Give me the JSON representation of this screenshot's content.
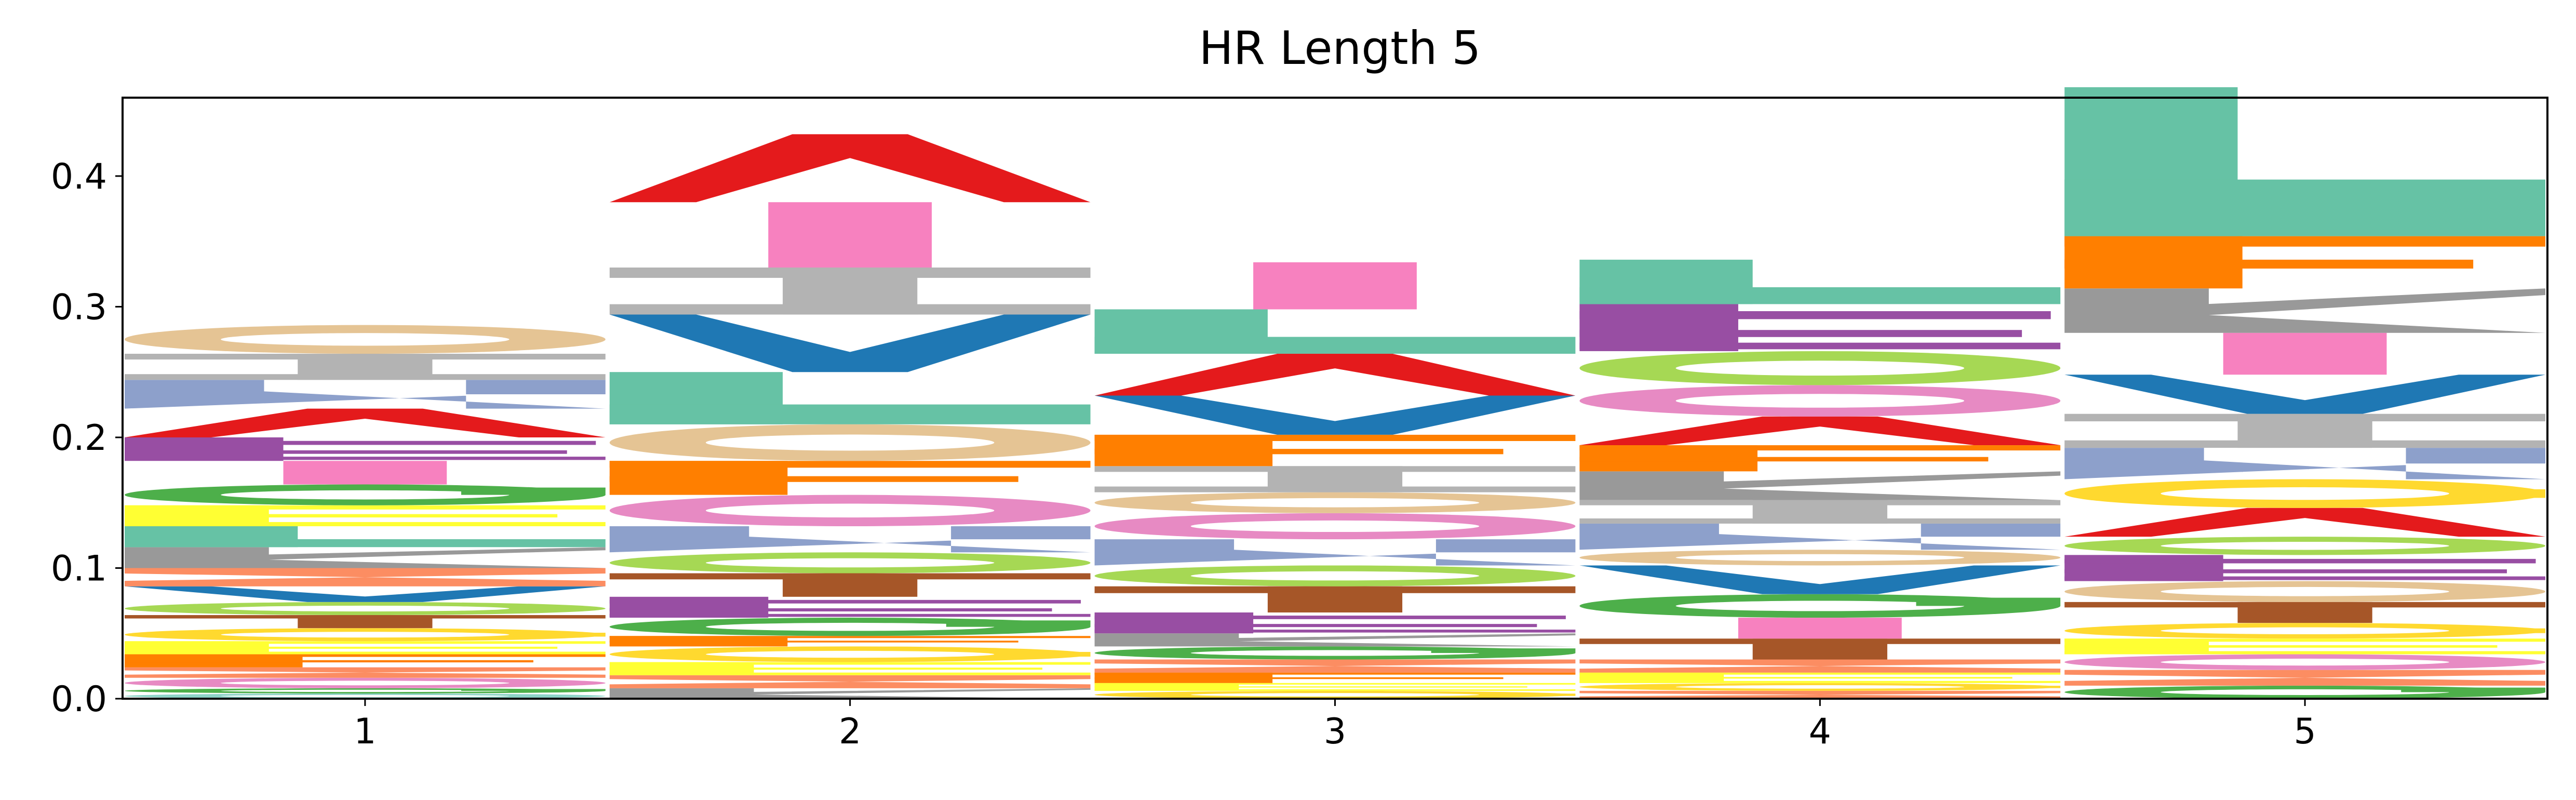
{
  "chart_data": {
    "type": "sequence-logo",
    "title": "HR Length 5",
    "xlabel": "",
    "ylabel": "",
    "ylim": [
      0,
      0.46
    ],
    "yticks": [
      0.0,
      0.1,
      0.2,
      0.3,
      0.4
    ],
    "ytick_labels": [
      "0.0",
      "0.1",
      "0.2",
      "0.3",
      "0.4"
    ],
    "x": [
      1,
      2,
      3,
      4,
      5
    ],
    "xtick_labels": [
      "1",
      "2",
      "3",
      "4",
      "5"
    ],
    "grid": false,
    "legend": "none",
    "colors": {
      "A": "#e41a1c",
      "V": "#1f78b4",
      "L": "#66c2a5",
      "I": "#b3b3b3",
      "M": "#f781bf",
      "F": "#ff7f00",
      "Y": "#ffd92f",
      "W": "#8da0cb",
      "K": "#984ea3",
      "R": "#a6d854",
      "H": "#e5c494",
      "D": "#4daf4a",
      "E": "#ffff33",
      "S": "#fc8d62",
      "T": "#a65628",
      "N": "#999999",
      "Q": "#e78ac3",
      "G": "#8dd3c7",
      "P": "#bebada",
      "C": "#fdb462"
    },
    "positions": [
      {
        "position": 1,
        "stack": [
          {
            "glyph": "G",
            "height": 0.004
          },
          {
            "glyph": "D",
            "height": 0.004
          },
          {
            "glyph": "Q",
            "height": 0.008
          },
          {
            "glyph": "S",
            "height": 0.008
          },
          {
            "glyph": "F",
            "height": 0.01
          },
          {
            "glyph": "E",
            "height": 0.01
          },
          {
            "glyph": "Y",
            "height": 0.01
          },
          {
            "glyph": "T",
            "height": 0.01
          },
          {
            "glyph": "R",
            "height": 0.01
          },
          {
            "glyph": "V",
            "height": 0.012
          },
          {
            "glyph": "S",
            "height": 0.014
          },
          {
            "glyph": "N",
            "height": 0.016
          },
          {
            "glyph": "L",
            "height": 0.016
          },
          {
            "glyph": "E",
            "height": 0.016
          },
          {
            "glyph": "D",
            "height": 0.016
          },
          {
            "glyph": "M",
            "height": 0.018
          },
          {
            "glyph": "K",
            "height": 0.018
          },
          {
            "glyph": "A",
            "height": 0.022
          },
          {
            "glyph": "W",
            "height": 0.022
          },
          {
            "glyph": "I",
            "height": 0.02
          },
          {
            "glyph": "H",
            "height": 0.022
          }
        ]
      },
      {
        "position": 2,
        "stack": [
          {
            "glyph": "N",
            "height": 0.008
          },
          {
            "glyph": "S",
            "height": 0.01
          },
          {
            "glyph": "E",
            "height": 0.01
          },
          {
            "glyph": "Y",
            "height": 0.012
          },
          {
            "glyph": "F",
            "height": 0.008
          },
          {
            "glyph": "D",
            "height": 0.014
          },
          {
            "glyph": "K",
            "height": 0.016
          },
          {
            "glyph": "T",
            "height": 0.018
          },
          {
            "glyph": "R",
            "height": 0.016
          },
          {
            "glyph": "W",
            "height": 0.02
          },
          {
            "glyph": "Q",
            "height": 0.024
          },
          {
            "glyph": "F",
            "height": 0.026
          },
          {
            "glyph": "H",
            "height": 0.028
          },
          {
            "glyph": "L",
            "height": 0.04
          },
          {
            "glyph": "V",
            "height": 0.044
          },
          {
            "glyph": "I",
            "height": 0.036
          },
          {
            "glyph": "M",
            "height": 0.05
          },
          {
            "glyph": "A",
            "height": 0.052
          }
        ]
      },
      {
        "position": 3,
        "stack": [
          {
            "glyph": "Y",
            "height": 0.006
          },
          {
            "glyph": "E",
            "height": 0.006
          },
          {
            "glyph": "F",
            "height": 0.008
          },
          {
            "glyph": "S",
            "height": 0.01
          },
          {
            "glyph": "D",
            "height": 0.01
          },
          {
            "glyph": "N",
            "height": 0.01
          },
          {
            "glyph": "K",
            "height": 0.016
          },
          {
            "glyph": "T",
            "height": 0.02
          },
          {
            "glyph": "R",
            "height": 0.016
          },
          {
            "glyph": "W",
            "height": 0.02
          },
          {
            "glyph": "Q",
            "height": 0.02
          },
          {
            "glyph": "H",
            "height": 0.016
          },
          {
            "glyph": "I",
            "height": 0.02
          },
          {
            "glyph": "F",
            "height": 0.024
          },
          {
            "glyph": "V",
            "height": 0.03
          },
          {
            "glyph": "A",
            "height": 0.032
          },
          {
            "glyph": "L",
            "height": 0.034
          },
          {
            "glyph": "M",
            "height": 0.036
          }
        ]
      },
      {
        "position": 4,
        "stack": [
          {
            "glyph": "S",
            "height": 0.006
          },
          {
            "glyph": "Y",
            "height": 0.006
          },
          {
            "glyph": "E",
            "height": 0.008
          },
          {
            "glyph": "S",
            "height": 0.01
          },
          {
            "glyph": "T",
            "height": 0.016
          },
          {
            "glyph": "M",
            "height": 0.016
          },
          {
            "glyph": "D",
            "height": 0.018
          },
          {
            "glyph": "V",
            "height": 0.022
          },
          {
            "glyph": "H",
            "height": 0.012
          },
          {
            "glyph": "W",
            "height": 0.02
          },
          {
            "glyph": "I",
            "height": 0.018
          },
          {
            "glyph": "N",
            "height": 0.022
          },
          {
            "glyph": "F",
            "height": 0.02
          },
          {
            "glyph": "A",
            "height": 0.022
          },
          {
            "glyph": "Q",
            "height": 0.024
          },
          {
            "glyph": "R",
            "height": 0.026
          },
          {
            "glyph": "K",
            "height": 0.036
          },
          {
            "glyph": "L",
            "height": 0.034
          }
        ]
      },
      {
        "position": 5,
        "stack": [
          {
            "glyph": "D",
            "height": 0.01
          },
          {
            "glyph": "S",
            "height": 0.012
          },
          {
            "glyph": "Q",
            "height": 0.012
          },
          {
            "glyph": "E",
            "height": 0.012
          },
          {
            "glyph": "Y",
            "height": 0.012
          },
          {
            "glyph": "T",
            "height": 0.016
          },
          {
            "glyph": "H",
            "height": 0.016
          },
          {
            "glyph": "K",
            "height": 0.02
          },
          {
            "glyph": "R",
            "height": 0.014
          },
          {
            "glyph": "A",
            "height": 0.022
          },
          {
            "glyph": "Y",
            "height": 0.022
          },
          {
            "glyph": "W",
            "height": 0.024
          },
          {
            "glyph": "I",
            "height": 0.026
          },
          {
            "glyph": "V",
            "height": 0.03
          },
          {
            "glyph": "M",
            "height": 0.032
          },
          {
            "glyph": "N",
            "height": 0.034
          },
          {
            "glyph": "F",
            "height": 0.04
          },
          {
            "glyph": "L",
            "height": 0.114
          }
        ]
      }
    ]
  }
}
